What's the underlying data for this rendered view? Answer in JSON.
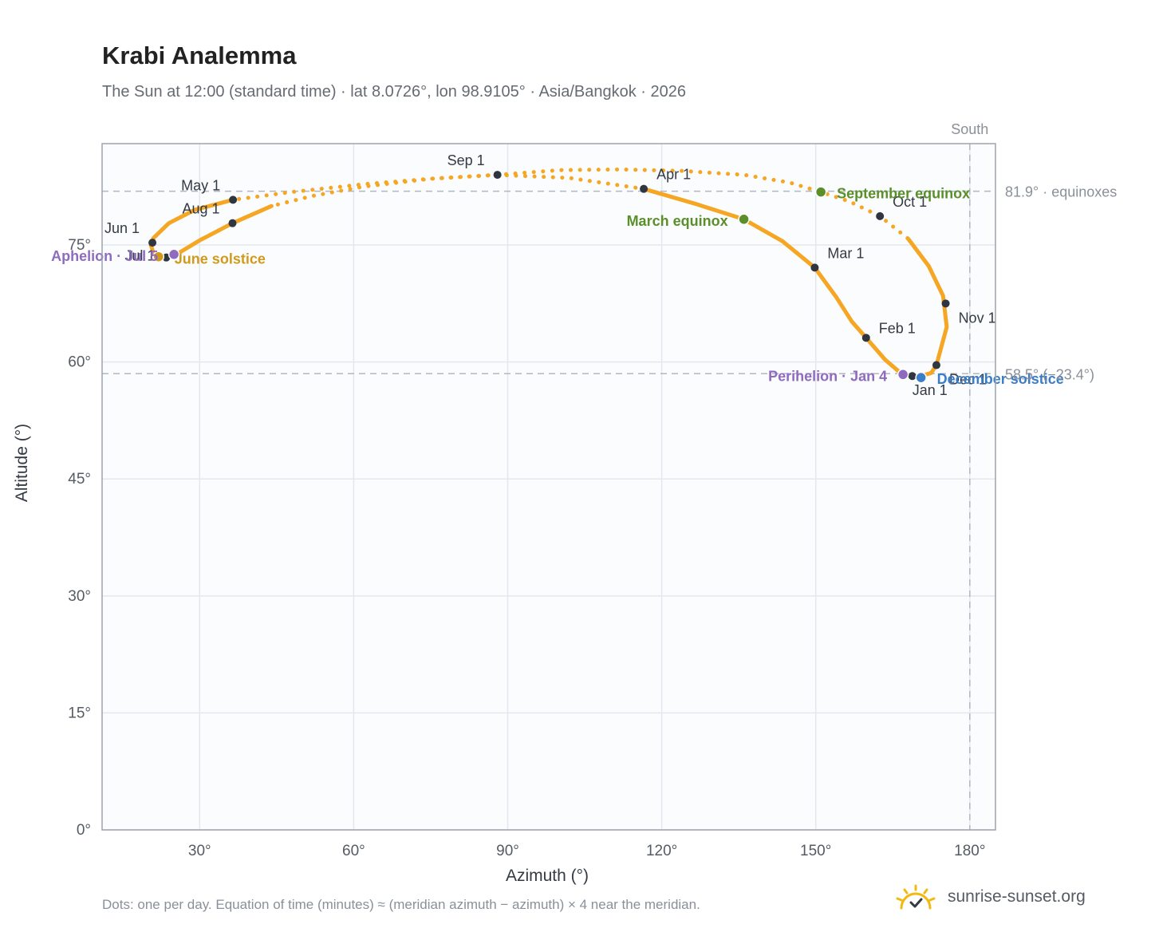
{
  "title": "Krabi Analemma",
  "subtitle": "The Sun at 12:00 (standard time) · lat 8.0726°, lon 98.9105° · Asia/Bangkok · 2026",
  "footnote": "Dots: one per day. Equation of time (minutes) ≈ (meridian azimuth − azimuth) × 4 near the meridian.",
  "brand": {
    "name": "sunrise-sunset.org",
    "icon": "sun-logo-icon"
  },
  "colors": {
    "curve": "#f5a623",
    "month_dot": "#2f3640",
    "equinox": "#5a8f29",
    "june_solstice": "#d19a1b",
    "december_solstice": "#3a7dc9",
    "apsis": "#8e6bbf",
    "grid": "#e3e8ee",
    "plot_bg": "#fafcfe",
    "reference": "#b0b8c4"
  },
  "chart_data": {
    "type": "scatter",
    "xlabel": "Azimuth (°)",
    "ylabel": "Altitude (°)",
    "xlim": [
      11,
      185
    ],
    "ylim": [
      0,
      88
    ],
    "grid": true,
    "x_ticks": [
      {
        "value": 30,
        "label": "30°"
      },
      {
        "value": 60,
        "label": "60°"
      },
      {
        "value": 90,
        "label": "90°"
      },
      {
        "value": 120,
        "label": "120°"
      },
      {
        "value": 150,
        "label": "150°"
      },
      {
        "value": 180,
        "label": "180°"
      }
    ],
    "y_ticks": [
      {
        "value": 0,
        "label": "0°"
      },
      {
        "value": 15,
        "label": "15°"
      },
      {
        "value": 30,
        "label": "30°"
      },
      {
        "value": 45,
        "label": "45°"
      },
      {
        "value": 60,
        "label": "60°"
      },
      {
        "value": 75,
        "label": "75°"
      }
    ],
    "reference_lines": [
      {
        "axis": "y",
        "value": 81.9,
        "label": "81.9° · equinoxes"
      },
      {
        "axis": "y",
        "value": 58.5,
        "label": "58.5° (−23.4°)"
      },
      {
        "axis": "x",
        "value": 180,
        "label": "South"
      }
    ],
    "analemma_path": [
      [
        173.5,
        59.6
      ],
      [
        175.5,
        64.5
      ],
      [
        174.8,
        68.5
      ],
      [
        172.0,
        72.3
      ],
      [
        168.0,
        75.8
      ],
      [
        162.5,
        78.7
      ],
      [
        156.5,
        80.6
      ],
      [
        151.0,
        81.8
      ],
      [
        145.0,
        83.0
      ],
      [
        136.0,
        84.0
      ],
      [
        124.0,
        84.5
      ],
      [
        112.0,
        84.7
      ],
      [
        100.0,
        84.6
      ],
      [
        88.0,
        84.0
      ],
      [
        75.0,
        83.5
      ],
      [
        62.0,
        82.8
      ],
      [
        48.0,
        81.8
      ],
      [
        36.5,
        80.8
      ],
      [
        29.0,
        79.5
      ],
      [
        24.0,
        77.8
      ],
      [
        21.0,
        75.9
      ],
      [
        20.5,
        75.0
      ],
      [
        21.0,
        74.0
      ],
      [
        22.0,
        73.5
      ],
      [
        24.0,
        73.5
      ],
      [
        25.5,
        73.8
      ],
      [
        30.0,
        75.6
      ],
      [
        36.4,
        77.8
      ],
      [
        44.0,
        80.0
      ],
      [
        52.0,
        81.3
      ],
      [
        62.0,
        82.5
      ],
      [
        75.0,
        83.5
      ],
      [
        88.0,
        84.0
      ],
      [
        102.0,
        83.6
      ],
      [
        116.5,
        82.2
      ],
      [
        126.5,
        80.3
      ],
      [
        136.0,
        78.3
      ],
      [
        143.5,
        75.5
      ],
      [
        149.8,
        72.1
      ],
      [
        154.0,
        68.3
      ],
      [
        157.0,
        65.2
      ],
      [
        159.8,
        63.1
      ],
      [
        163.5,
        60.3
      ],
      [
        166.5,
        58.6
      ],
      [
        168.5,
        58.2
      ],
      [
        170.5,
        58.2
      ],
      [
        172.5,
        58.6
      ],
      [
        173.5,
        59.6
      ]
    ],
    "solid_ranges": [
      [
        0,
        4
      ],
      [
        17,
        28
      ],
      [
        34,
        47
      ]
    ],
    "month_points": [
      {
        "label": "Jan 1",
        "x": 168.8,
        "y": 58.2
      },
      {
        "label": "Feb 1",
        "x": 159.8,
        "y": 63.1
      },
      {
        "label": "Mar 1",
        "x": 149.8,
        "y": 72.1
      },
      {
        "label": "Apr 1",
        "x": 116.5,
        "y": 82.2
      },
      {
        "label": "May 1",
        "x": 36.5,
        "y": 80.8
      },
      {
        "label": "Jun 1",
        "x": 20.8,
        "y": 75.3
      },
      {
        "label": "Jul 1",
        "x": 23.5,
        "y": 73.4
      },
      {
        "label": "Aug 1",
        "x": 36.4,
        "y": 77.8
      },
      {
        "label": "Sep 1",
        "x": 88.0,
        "y": 84.0
      },
      {
        "label": "Oct 1",
        "x": 162.5,
        "y": 78.7
      },
      {
        "label": "Nov 1",
        "x": 175.3,
        "y": 67.5
      },
      {
        "label": "Dec 1",
        "x": 173.5,
        "y": 59.6
      }
    ],
    "events": [
      {
        "label": "March equinox",
        "x": 136.0,
        "y": 78.3,
        "kind": "equinox"
      },
      {
        "label": "September equinox",
        "x": 151.0,
        "y": 81.8,
        "kind": "equinox"
      },
      {
        "label": "June solstice",
        "x": 22.0,
        "y": 73.5,
        "kind": "june_solstice"
      },
      {
        "label": "December solstice",
        "x": 170.5,
        "y": 58.0,
        "kind": "december_solstice"
      },
      {
        "label": "Aphelion · Jul 5",
        "x": 25.0,
        "y": 73.8,
        "kind": "apsis"
      },
      {
        "label": "Perihelion · Jan 4",
        "x": 167.0,
        "y": 58.4,
        "kind": "apsis"
      }
    ]
  }
}
